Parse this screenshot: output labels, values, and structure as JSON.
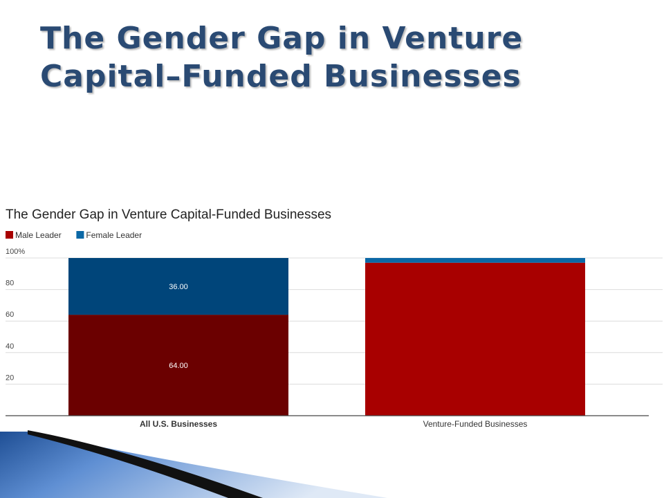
{
  "slide": {
    "title_line1": "The Gender Gap in Venture",
    "title_line2": "Capital–Funded Businesses"
  },
  "chart_data": {
    "type": "bar",
    "stacked": true,
    "title": "The Gender Gap in Venture Capital-Funded Businesses",
    "categories": [
      "All U.S. Businesses",
      "Venture-Funded Businesses"
    ],
    "series": [
      {
        "name": "Male Leader",
        "values": [
          64.0,
          97.0
        ],
        "colors": [
          "#6b0000",
          "#a80000"
        ],
        "data_labels": [
          "64.00",
          ""
        ]
      },
      {
        "name": "Female Leader",
        "values": [
          36.0,
          3.0
        ],
        "colors": [
          "#00457a",
          "#0b68a6"
        ],
        "data_labels": [
          "36.00",
          ""
        ]
      }
    ],
    "legend_colors": [
      "#a80000",
      "#0b68a6"
    ],
    "y_ticks": [
      "20",
      "40",
      "60",
      "80",
      "100%"
    ],
    "y_tick_values": [
      20,
      40,
      60,
      80,
      100
    ],
    "ylim": [
      0,
      100
    ],
    "grid": true,
    "legend_position": "top-left",
    "xlabel": "",
    "ylabel": ""
  }
}
